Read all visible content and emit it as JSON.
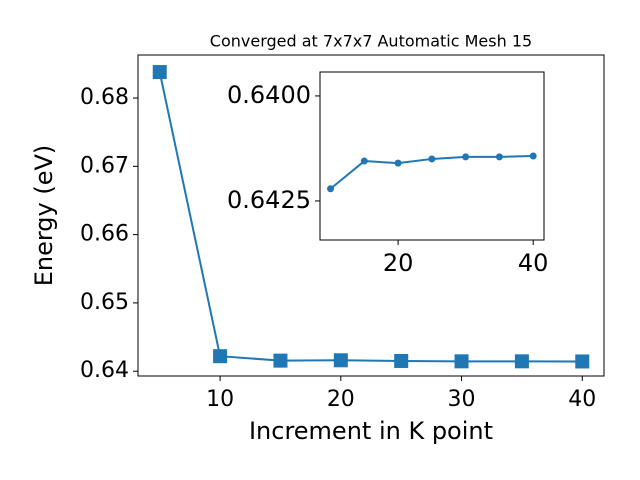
{
  "chart_data": [
    {
      "type": "line",
      "title": "Converged at 7x7x7 Automatic Mesh 15",
      "xlabel": "Increment in K point",
      "ylabel": "Energy (eV)",
      "x": [
        5,
        10,
        15,
        20,
        25,
        30,
        35,
        40
      ],
      "series": [
        {
          "color": "#1f77b4",
          "marker": "square",
          "values": [
            0.6838,
            0.6422,
            0.64155,
            0.6416,
            0.6415,
            0.64145,
            0.64145,
            0.64143
          ]
        }
      ],
      "xlim": [
        3.2,
        41.8
      ],
      "ylim": [
        0.6393,
        0.6863
      ],
      "xticks": [
        10,
        20,
        30,
        40
      ],
      "yticks": [
        0.64,
        0.65,
        0.66,
        0.67,
        0.68
      ]
    },
    {
      "type": "line",
      "x": [
        10,
        15,
        20,
        25,
        30,
        35,
        40
      ],
      "series": [
        {
          "color": "#1f77b4",
          "marker": "circle",
          "values": [
            0.64221,
            0.64155,
            0.6416,
            0.6415,
            0.64145,
            0.64145,
            0.64143
          ]
        }
      ],
      "xlim": [
        8.44,
        41.6
      ],
      "ylim": [
        0.64343,
        0.63943
      ],
      "xticks": [
        20,
        40
      ],
      "yticks": [
        {
          "value": 0.64,
          "label": "0.6400"
        },
        {
          "value": 0.6425,
          "label": "0.6425"
        }
      ]
    }
  ]
}
